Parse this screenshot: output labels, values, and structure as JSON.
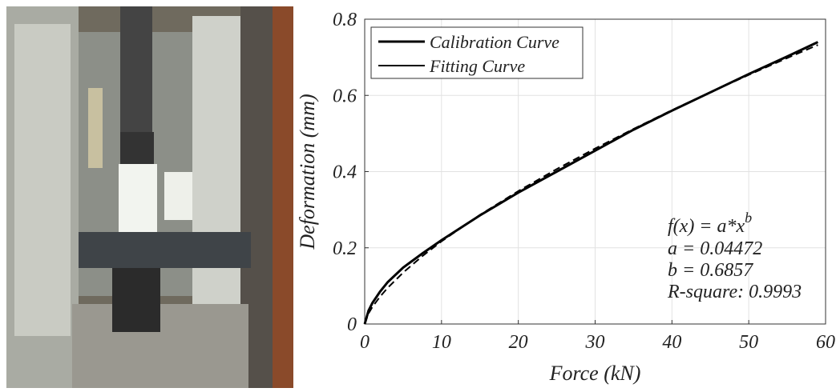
{
  "chart_data": {
    "type": "line",
    "x_label": "Force (kN)",
    "y_label": "Deformation (mm)",
    "x": [
      0,
      0.5,
      1,
      2,
      3,
      5,
      7.5,
      10,
      15,
      20,
      25,
      30,
      35,
      40,
      45,
      50,
      55,
      59
    ],
    "series": [
      {
        "name": "Calibration Curve",
        "color": "#000000",
        "width": 3,
        "dashed": false,
        "values": [
          0,
          0.035,
          0.055,
          0.085,
          0.11,
          0.148,
          0.185,
          0.22,
          0.285,
          0.345,
          0.4,
          0.455,
          0.51,
          0.56,
          0.608,
          0.656,
          0.702,
          0.74
        ]
      },
      {
        "name": "Fitting Curve",
        "color": "#000000",
        "width": 2,
        "dashed": true,
        "values": [
          0,
          0.0278,
          0.0447,
          0.0719,
          0.095,
          0.1348,
          0.178,
          0.2169,
          0.2864,
          0.3489,
          0.4065,
          0.4606,
          0.5121,
          0.5613,
          0.6083,
          0.6538,
          0.6981,
          0.7325
        ]
      }
    ],
    "xlim": [
      0,
      60
    ],
    "xticks": [
      0,
      10,
      20,
      30,
      40,
      50,
      60
    ],
    "ylim": [
      0,
      0.8
    ],
    "yticks": [
      0,
      0.2,
      0.4,
      0.6,
      0.8
    ],
    "grid": true,
    "legend": "upper left",
    "formula": {
      "base": "f(x) = a*x",
      "superscript": "b"
    },
    "annotations": [
      "a = 0.04472",
      "b = 0.6857",
      "R-square: 0.9993"
    ]
  }
}
